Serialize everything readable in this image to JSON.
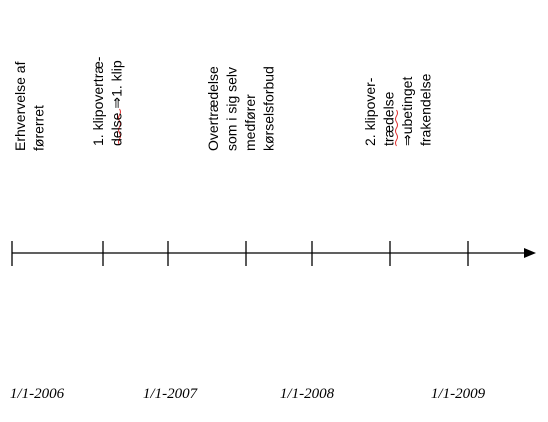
{
  "events": [
    {
      "lines": [
        "Erhvervelse af",
        "førerret"
      ]
    },
    {
      "lines": [
        "1. klipovertræ-",
        "delse ⇒1. klip"
      ]
    },
    {
      "lines": [
        "Overtrædelse",
        "som i sig selv",
        "medfører",
        "kørselsforbud"
      ]
    },
    {
      "lines": [
        "2. klipover-",
        "trædelse",
        "⇒ubetinget",
        "frakendelse"
      ]
    }
  ],
  "dates": [
    "1/1-2006",
    "1/1-2007",
    "1/1-2008",
    "1/1-2009"
  ]
}
